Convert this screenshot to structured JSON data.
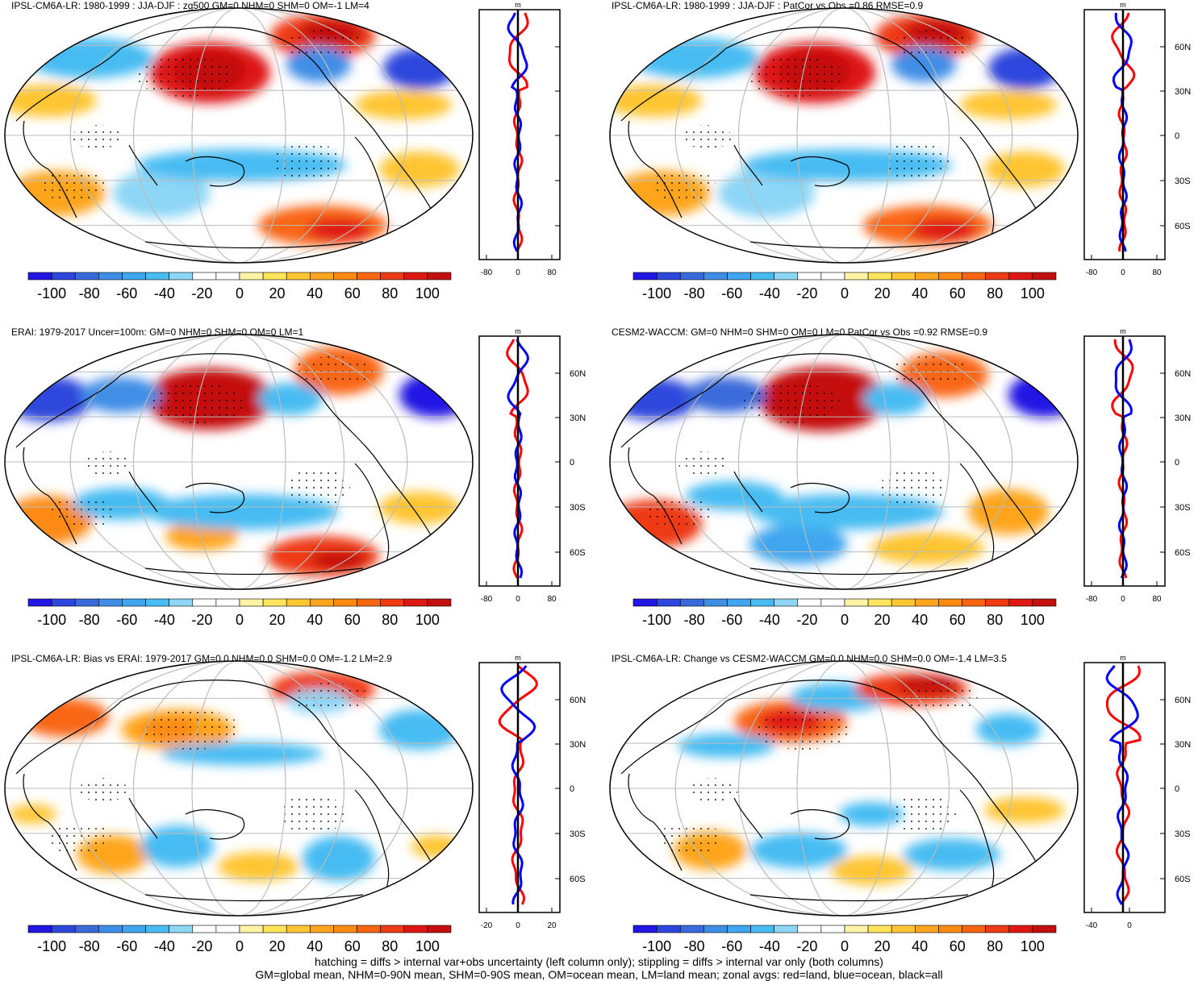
{
  "colorbar": {
    "labels": [
      "-100",
      "-80",
      "-60",
      "-40",
      "-20",
      "0",
      "20",
      "40",
      "60",
      "80",
      "100"
    ],
    "colors": [
      "#2216e4",
      "#2d46dc",
      "#3a6ad9",
      "#3f8ee6",
      "#3fa6ef",
      "#46bcf2",
      "#8ed6f6",
      "#ffffff",
      "#ffffff",
      "#fff3a6",
      "#ffe45c",
      "#ffc532",
      "#ffa51e",
      "#ff8a12",
      "#f96612",
      "#ee3b13",
      "#df1713",
      "#c40f0f"
    ]
  },
  "zonal_profile": {
    "unit": "m",
    "lat_labels": [
      "60N",
      "30N",
      "0",
      "30S",
      "60S"
    ]
  },
  "panels": [
    {
      "title": "IPSL-CM6A-LR: 1980-1999 : JJA-DJF : zg500 GM=0 NHM=0 SHM=0 OM=-1 LM=4",
      "xticks": [
        "-80",
        "0",
        "80"
      ],
      "show_lat_labels": false
    },
    {
      "title": "IPSL-CM6A-LR: 1980-1999 : JJA-DJF : PatCor vs Obs =0.86 RMSE=0.9",
      "xticks": [
        "-80",
        "0",
        "80"
      ],
      "show_lat_labels": true
    },
    {
      "title": "ERAI: 1979-2017 Uncer=100m: GM=0 NHM=0 SHM=0 OM=0 LM=1",
      "xticks": [
        "-80",
        "0",
        "80"
      ],
      "show_lat_labels": true
    },
    {
      "title": "CESM2-WACCM: GM=0 NHM=0 SHM=0 OM=0 LM=0 PatCor vs Obs =0.92 RMSE=0.9",
      "xticks": [
        "-80",
        "0",
        "80"
      ],
      "show_lat_labels": true
    },
    {
      "title": "IPSL-CM6A-LR: Bias vs ERAI: 1979-2017 GM=0.0 NHM=0.0 SHM=0.0 OM=-1.2 LM=2.9",
      "xticks": [
        "-20",
        "0",
        "20"
      ],
      "show_lat_labels": true
    },
    {
      "title": "IPSL-CM6A-LR: Change vs CESM2-WACCM GM=0.0 NHM=0.0 SHM=0.0 OM=-1.4 LM=3.5",
      "xticks": [
        "-40",
        "0"
      ],
      "show_lat_labels": true
    }
  ],
  "footnote": {
    "line1": "hatching = diffs > internal var+obs uncertainty (left column only); stippling = diffs > internal var only (both columns)",
    "line2": "GM=global mean, NHM=0-90N mean, SHM=0-90S mean, OM=ocean mean, LM=land mean; zonal avgs: red=land, blue=ocean, black=all"
  }
}
